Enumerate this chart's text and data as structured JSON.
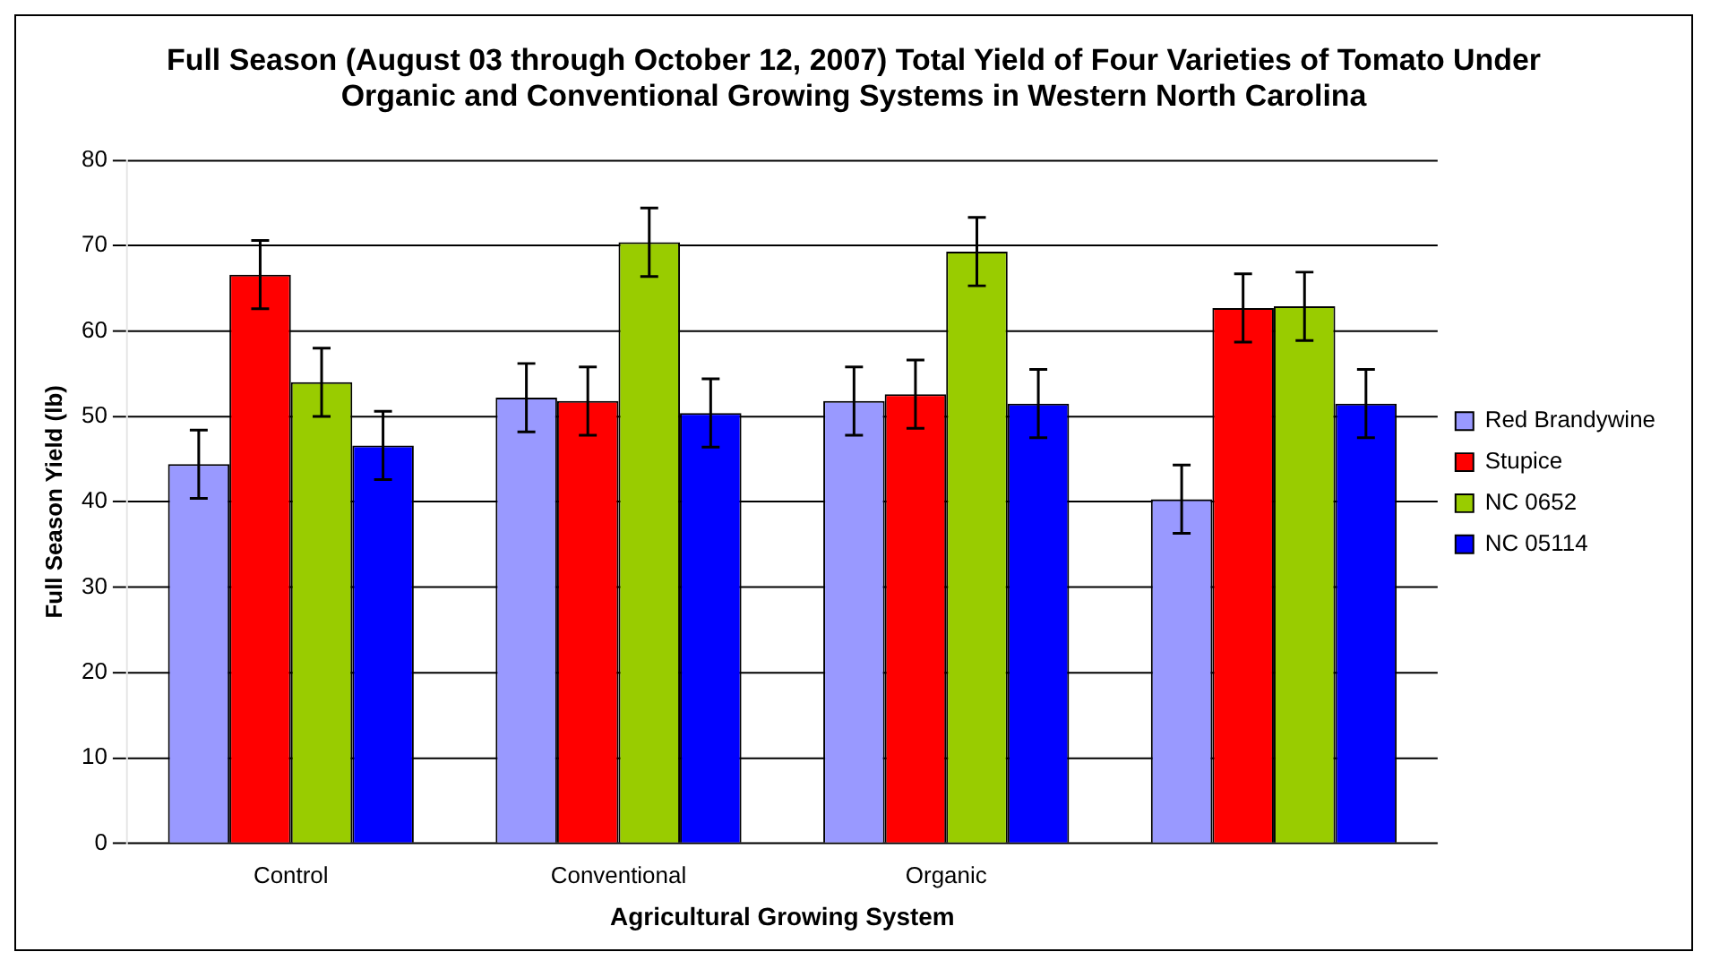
{
  "chart_data": {
    "type": "bar",
    "title": "Full Season (August 03 through October 12, 2007) Total Yield of Four Varieties of Tomato Under Organic and Conventional Growing Systems in Western North Carolina",
    "xlabel": "Agricultural Growing System",
    "ylabel": "Full Season Yield (lb)",
    "categories": [
      "Control",
      "Conventional",
      "Organic",
      null
    ],
    "series": [
      {
        "name": "Red Brandywine",
        "color": "#9999ff",
        "values": [
          44.4,
          52.2,
          51.8,
          40.3
        ],
        "errors": [
          4,
          4,
          4,
          4
        ]
      },
      {
        "name": "Stupice",
        "color": "#ff0000",
        "values": [
          66.6,
          51.8,
          52.6,
          62.7
        ],
        "errors": [
          4,
          4,
          4,
          4
        ]
      },
      {
        "name": "NC 0652",
        "color": "#99cc00",
        "values": [
          54.0,
          70.4,
          69.3,
          62.9
        ],
        "errors": [
          4,
          4,
          4,
          4
        ]
      },
      {
        "name": "NC 05114",
        "color": "#0000ff",
        "values": [
          46.6,
          50.4,
          51.5,
          51.5
        ],
        "errors": [
          4,
          4,
          4,
          4
        ]
      }
    ],
    "ylim": [
      0,
      80
    ],
    "yticks": [
      0,
      10,
      20,
      30,
      40,
      50,
      60,
      70,
      80
    ],
    "grid": "y",
    "legend": "right"
  }
}
